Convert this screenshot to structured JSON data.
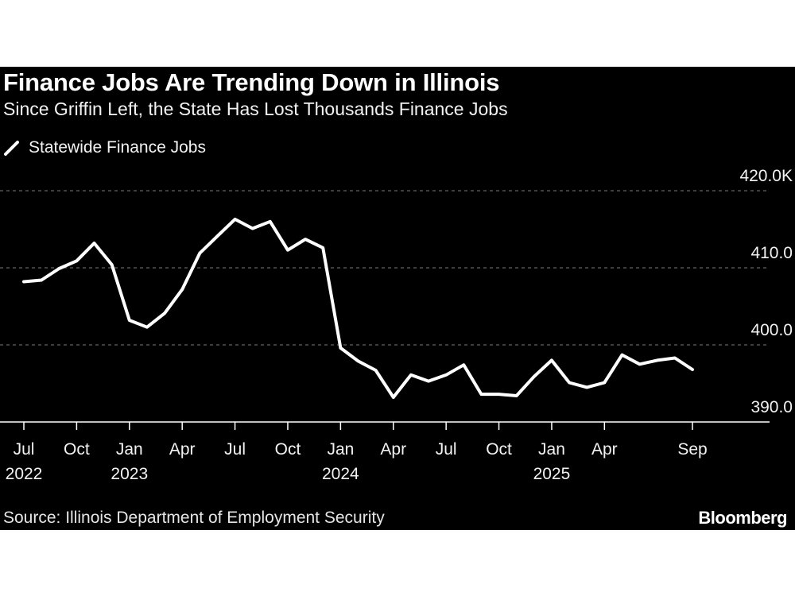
{
  "title": "Finance Jobs Are Trending Down in Illinois",
  "subtitle": "Since Griffin Left, the State Has Lost Thousands Finance Jobs",
  "source": "Source: Illinois Department of Employment Security",
  "brand": "Bloomberg",
  "colors": {
    "background": "#000000",
    "line": "#ffffff",
    "grid": "#7a7a7a"
  },
  "chart_data": {
    "type": "line",
    "title": "Finance Jobs Are Trending Down in Illinois",
    "subtitle": "Since Griffin Left, the State Has Lost Thousands Finance Jobs",
    "legend_position": "top-left",
    "grid": "horizontal dashed",
    "ylim": [
      390,
      420
    ],
    "y_ticks": [
      {
        "value": 420,
        "label": "420.0K"
      },
      {
        "value": 410,
        "label": "410.0"
      },
      {
        "value": 400,
        "label": "400.0"
      },
      {
        "value": 390,
        "label": "390.0"
      }
    ],
    "x_ticks": [
      {
        "date": "2022-07",
        "label": "Jul",
        "year": "2022"
      },
      {
        "date": "2022-10",
        "label": "Oct",
        "year": ""
      },
      {
        "date": "2023-01",
        "label": "Jan",
        "year": "2023"
      },
      {
        "date": "2023-04",
        "label": "Apr",
        "year": ""
      },
      {
        "date": "2023-07",
        "label": "Jul",
        "year": ""
      },
      {
        "date": "2023-10",
        "label": "Oct",
        "year": ""
      },
      {
        "date": "2024-01",
        "label": "Jan",
        "year": "2024"
      },
      {
        "date": "2024-04",
        "label": "Apr",
        "year": ""
      },
      {
        "date": "2024-07",
        "label": "Jul",
        "year": ""
      },
      {
        "date": "2024-10",
        "label": "Oct",
        "year": ""
      },
      {
        "date": "2025-01",
        "label": "Jan",
        "year": "2025"
      },
      {
        "date": "2025-04",
        "label": "Apr",
        "year": ""
      },
      {
        "date": "2025-09",
        "label": "Sep",
        "year": ""
      }
    ],
    "series": [
      {
        "name": "Statewide Finance Jobs",
        "x": [
          "2022-07",
          "2022-08",
          "2022-09",
          "2022-10",
          "2022-11",
          "2022-12",
          "2023-01",
          "2023-02",
          "2023-03",
          "2023-04",
          "2023-05",
          "2023-06",
          "2023-07",
          "2023-08",
          "2023-09",
          "2023-10",
          "2023-11",
          "2023-12",
          "2024-01",
          "2024-02",
          "2024-03",
          "2024-04",
          "2024-05",
          "2024-06",
          "2024-07",
          "2024-08",
          "2024-09",
          "2024-10",
          "2024-11",
          "2024-12",
          "2025-01",
          "2025-02",
          "2025-03",
          "2025-04",
          "2025-05",
          "2025-06",
          "2025-07",
          "2025-08",
          "2025-09"
        ],
        "values": [
          408.2,
          408.4,
          409.9,
          410.9,
          413.2,
          410.4,
          403.2,
          402.3,
          404.1,
          407.2,
          411.9,
          414.1,
          416.3,
          415.1,
          416.0,
          412.3,
          413.7,
          412.6,
          399.6,
          397.9,
          396.7,
          393.2,
          396.1,
          395.3,
          396.1,
          397.4,
          393.6,
          393.6,
          393.4,
          395.9,
          398.0,
          395.1,
          394.5,
          395.1,
          398.7,
          397.5,
          398.0,
          398.3,
          396.8
        ]
      }
    ]
  }
}
